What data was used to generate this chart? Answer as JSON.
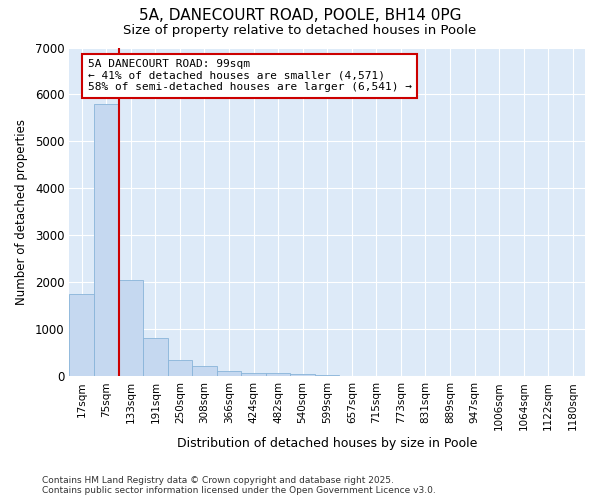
{
  "title1": "5A, DANECOURT ROAD, POOLE, BH14 0PG",
  "title2": "Size of property relative to detached houses in Poole",
  "xlabel": "Distribution of detached houses by size in Poole",
  "ylabel": "Number of detached properties",
  "categories": [
    "17sqm",
    "75sqm",
    "133sqm",
    "191sqm",
    "250sqm",
    "308sqm",
    "366sqm",
    "424sqm",
    "482sqm",
    "540sqm",
    "599sqm",
    "657sqm",
    "715sqm",
    "773sqm",
    "831sqm",
    "889sqm",
    "947sqm",
    "1006sqm",
    "1064sqm",
    "1122sqm",
    "1180sqm"
  ],
  "values": [
    1750,
    5800,
    2050,
    820,
    350,
    220,
    110,
    80,
    70,
    50,
    30,
    10,
    5,
    2,
    1,
    1,
    0,
    0,
    0,
    0,
    0
  ],
  "bar_color": "#c5d8f0",
  "bar_edge_color": "#89b4d9",
  "vline_color": "#cc0000",
  "annotation_title": "5A DANECOURT ROAD: 99sqm",
  "annotation_line1": "← 41% of detached houses are smaller (4,571)",
  "annotation_line2": "58% of semi-detached houses are larger (6,541) →",
  "annotation_box_color": "#ffffff",
  "annotation_box_edge": "#cc0000",
  "ylim": [
    0,
    7000
  ],
  "yticks": [
    0,
    1000,
    2000,
    3000,
    4000,
    5000,
    6000,
    7000
  ],
  "fig_bg_color": "#ffffff",
  "plot_bg_color": "#ddeaf8",
  "grid_color": "#ffffff",
  "footer1": "Contains HM Land Registry data © Crown copyright and database right 2025.",
  "footer2": "Contains public sector information licensed under the Open Government Licence v3.0."
}
